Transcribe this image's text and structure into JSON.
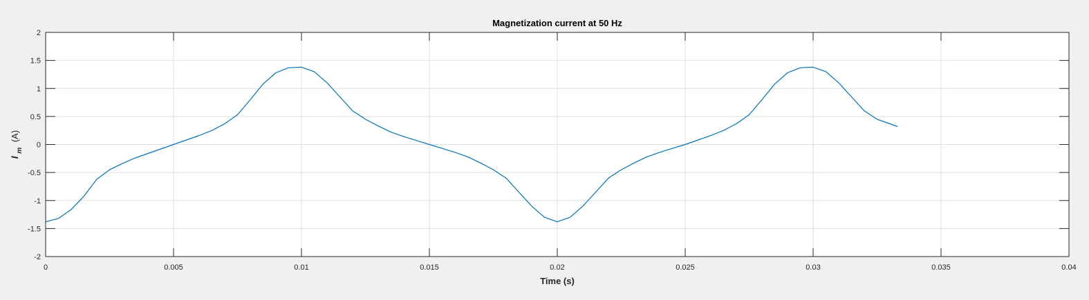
{
  "chart_data": {
    "type": "line",
    "title": "Magnetization current at 50 Hz",
    "xlabel": "Time (s)",
    "ylabel": {
      "symbol": "I",
      "subscript": "m",
      "unit": "(A)"
    },
    "xlim": [
      0,
      0.04
    ],
    "ylim": [
      -2,
      2
    ],
    "xticks": [
      0,
      0.005,
      0.01,
      0.015,
      0.02,
      0.025,
      0.03,
      0.035,
      0.04
    ],
    "xtick_labels": [
      "0",
      "0.005",
      "0.01",
      "0.015",
      "0.02",
      "0.025",
      "0.03",
      "0.035",
      "0.04"
    ],
    "yticks": [
      -2,
      -1.5,
      -1,
      -0.5,
      0,
      0.5,
      1,
      1.5,
      2
    ],
    "ytick_labels": [
      "-2",
      "-1.5",
      "-1",
      "-0.5",
      "0",
      "0.5",
      "1",
      "1.5",
      "2"
    ],
    "grid": true,
    "series": [
      {
        "color": "#0072bd",
        "x": [
          0,
          0.0005,
          0.001,
          0.0015,
          0.002,
          0.0025,
          0.003,
          0.0035,
          0.004,
          0.0045,
          0.005,
          0.0055,
          0.006,
          0.0065,
          0.007,
          0.0075,
          0.008,
          0.0085,
          0.009,
          0.0095,
          0.01,
          0.0105,
          0.011,
          0.0115,
          0.012,
          0.0125,
          0.013,
          0.0135,
          0.014,
          0.0145,
          0.015,
          0.0155,
          0.016,
          0.0165,
          0.017,
          0.0175,
          0.018,
          0.0185,
          0.019,
          0.0195,
          0.02,
          0.0205,
          0.021,
          0.0215,
          0.022,
          0.0225,
          0.023,
          0.0235,
          0.024,
          0.0245,
          0.025,
          0.0255,
          0.026,
          0.0265,
          0.027,
          0.0275,
          0.028,
          0.0285,
          0.029,
          0.0295,
          0.03,
          0.0305,
          0.031,
          0.0315,
          0.032,
          0.0325,
          0.0333
        ],
        "y": [
          -1.38,
          -1.32,
          -1.16,
          -0.92,
          -0.62,
          -0.45,
          -0.34,
          -0.24,
          -0.16,
          -0.08,
          0.0,
          0.08,
          0.16,
          0.25,
          0.37,
          0.53,
          0.8,
          1.08,
          1.28,
          1.37,
          1.38,
          1.3,
          1.1,
          0.85,
          0.6,
          0.45,
          0.33,
          0.22,
          0.14,
          0.07,
          0.0,
          -0.07,
          -0.14,
          -0.22,
          -0.33,
          -0.45,
          -0.6,
          -0.85,
          -1.1,
          -1.3,
          -1.38,
          -1.3,
          -1.1,
          -0.85,
          -0.6,
          -0.45,
          -0.33,
          -0.22,
          -0.14,
          -0.07,
          0.0,
          0.08,
          0.16,
          0.25,
          0.37,
          0.53,
          0.8,
          1.08,
          1.28,
          1.37,
          1.38,
          1.3,
          1.1,
          0.85,
          0.6,
          0.45,
          0.32
        ]
      }
    ]
  }
}
